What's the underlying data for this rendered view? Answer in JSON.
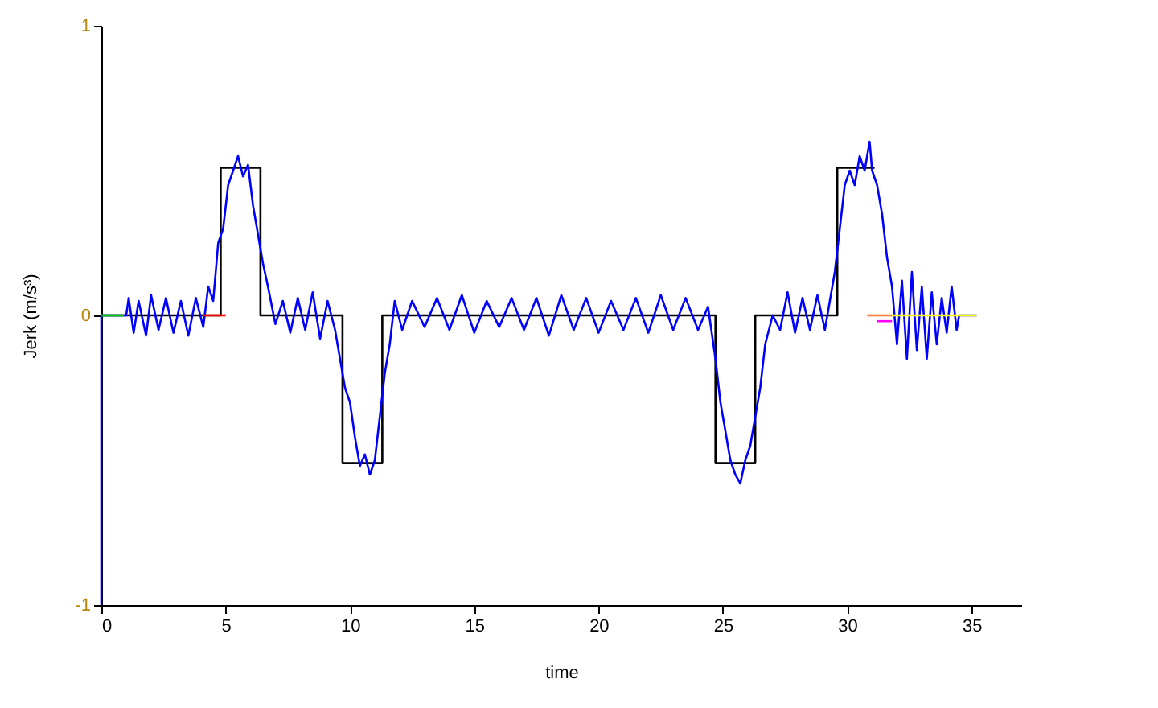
{
  "chart_data": {
    "type": "line",
    "xlabel": "time",
    "ylabel": "Jerk (m/s³)",
    "xlim": [
      0,
      37
    ],
    "ylim": [
      -1,
      1
    ],
    "xticks": [
      0,
      5,
      10,
      15,
      20,
      25,
      30,
      35
    ],
    "yticks": [
      -1,
      0,
      1
    ],
    "grid": false,
    "marker": "none",
    "line_style": "solid",
    "series": [
      {
        "color": "#000000",
        "x": [
          0,
          4.8,
          4.8,
          6.4,
          6.4,
          9.7,
          9.7,
          11.3,
          11.3,
          24.7,
          24.7,
          26.3,
          26.3,
          29.6,
          29.6,
          31.1
        ],
        "values": [
          0,
          0,
          0.51,
          0.51,
          0,
          0,
          -0.51,
          -0.51,
          0,
          0,
          -0.51,
          -0.51,
          0,
          0,
          0.51,
          0.51
        ]
      },
      {
        "color": "#0000ff",
        "x": [
          0,
          0,
          1.0,
          1.1,
          1.3,
          1.5,
          1.8,
          2.0,
          2.3,
          2.6,
          2.9,
          3.2,
          3.5,
          3.8,
          4.1,
          4.3,
          4.5,
          4.7,
          4.9,
          5.1,
          5.3,
          5.5,
          5.7,
          5.9,
          6.1,
          6.3,
          6.5,
          6.7,
          7.0,
          7.3,
          7.6,
          7.9,
          8.2,
          8.5,
          8.8,
          9.1,
          9.4,
          9.6,
          9.8,
          10.0,
          10.2,
          10.4,
          10.6,
          10.8,
          11.0,
          11.2,
          11.4,
          11.6,
          11.8,
          12.1,
          12.5,
          13.0,
          13.5,
          14.0,
          14.5,
          15.0,
          15.5,
          16.0,
          16.5,
          17.0,
          17.5,
          18.0,
          18.5,
          19.0,
          19.5,
          20.0,
          20.5,
          21.0,
          21.5,
          22.0,
          22.5,
          23.0,
          23.5,
          24.0,
          24.4,
          24.7,
          24.9,
          25.1,
          25.3,
          25.5,
          25.7,
          25.9,
          26.1,
          26.3,
          26.5,
          26.7,
          27.0,
          27.3,
          27.6,
          27.9,
          28.2,
          28.5,
          28.8,
          29.1,
          29.3,
          29.5,
          29.7,
          29.9,
          30.1,
          30.3,
          30.5,
          30.7,
          30.9,
          31.0,
          31.2,
          31.4,
          31.6,
          31.8,
          32.0,
          32.2,
          32.4,
          32.6,
          32.8,
          33.0,
          33.2,
          33.4,
          33.6,
          33.8,
          34.0,
          34.2,
          34.4,
          34.5,
          35.2
        ],
        "values": [
          -1,
          0,
          0,
          0.06,
          -0.06,
          0.05,
          -0.07,
          0.07,
          -0.05,
          0.06,
          -0.06,
          0.05,
          -0.07,
          0.06,
          -0.04,
          0.1,
          0.05,
          0.25,
          0.3,
          0.45,
          0.5,
          0.55,
          0.48,
          0.52,
          0.38,
          0.28,
          0.18,
          0.1,
          -0.03,
          0.05,
          -0.06,
          0.06,
          -0.05,
          0.08,
          -0.08,
          0.05,
          -0.05,
          -0.15,
          -0.25,
          -0.3,
          -0.42,
          -0.52,
          -0.48,
          -0.55,
          -0.5,
          -0.35,
          -0.2,
          -0.1,
          0.05,
          -0.05,
          0.05,
          -0.04,
          0.06,
          -0.05,
          0.07,
          -0.06,
          0.05,
          -0.04,
          0.06,
          -0.05,
          0.06,
          -0.07,
          0.07,
          -0.05,
          0.06,
          -0.06,
          0.05,
          -0.05,
          0.06,
          -0.06,
          0.07,
          -0.05,
          0.06,
          -0.05,
          0.03,
          -0.15,
          -0.3,
          -0.4,
          -0.5,
          -0.55,
          -0.58,
          -0.5,
          -0.45,
          -0.35,
          -0.25,
          -0.1,
          0.0,
          -0.05,
          0.08,
          -0.06,
          0.06,
          -0.05,
          0.07,
          -0.05,
          0.05,
          0.15,
          0.3,
          0.45,
          0.5,
          0.45,
          0.55,
          0.5,
          0.6,
          0.5,
          0.45,
          0.35,
          0.2,
          0.1,
          -0.1,
          0.12,
          -0.15,
          0.15,
          -0.12,
          0.1,
          -0.15,
          0.08,
          -0.1,
          0.06,
          -0.06,
          0.1,
          -0.05,
          0.0,
          0.0
        ]
      },
      {
        "color": "#00cc00",
        "x": [
          0,
          0.9
        ],
        "values": [
          0,
          0
        ]
      },
      {
        "color": "#ff0000",
        "x": [
          4.1,
          5.0
        ],
        "values": [
          0,
          0
        ]
      },
      {
        "color": "#ff8040",
        "x": [
          30.8,
          31.8
        ],
        "values": [
          0,
          0
        ]
      },
      {
        "color": "#ff00ff",
        "x": [
          31.2,
          31.8
        ],
        "values": [
          -0.02,
          -0.02
        ]
      },
      {
        "color": "#ffff00",
        "x": [
          31.8,
          35.2
        ],
        "values": [
          0,
          0
        ]
      }
    ]
  }
}
